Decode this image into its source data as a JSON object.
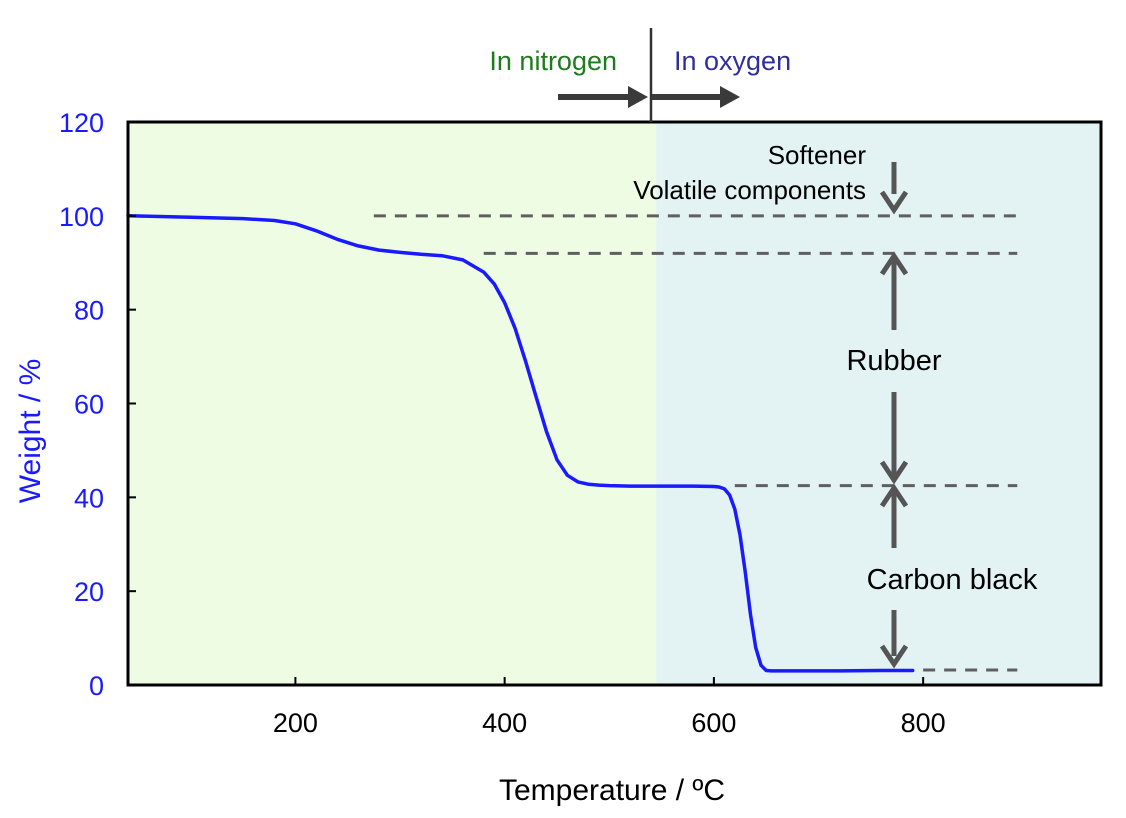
{
  "chart_data": {
    "type": "line",
    "title": "",
    "xlabel": "Temperature / ºC",
    "ylabel": "Weight / %",
    "xlim": [
      40,
      970
    ],
    "ylim": [
      0,
      120
    ],
    "x_ticks": [
      200,
      400,
      600,
      800
    ],
    "x_tick_labels": [
      "200",
      "400",
      "600",
      "800"
    ],
    "y_ticks": [
      0,
      20,
      40,
      60,
      80,
      100,
      120
    ],
    "y_tick_labels": [
      "0",
      "20",
      "40",
      "60",
      "80",
      "100",
      "120"
    ],
    "grid": false,
    "regions": [
      {
        "label": "In nitrogen",
        "x_start": 40,
        "x_end": 545,
        "color": "#eefce4",
        "label_color": "#1e7b1e"
      },
      {
        "label": "In oxygen",
        "x_start": 545,
        "x_end": 970,
        "color": "#e3f3f4",
        "label_color": "#2f2f99"
      }
    ],
    "series": [
      {
        "color": "#1a1aff",
        "x": [
          40,
          100,
          150,
          180,
          200,
          220,
          240,
          260,
          280,
          300,
          320,
          340,
          360,
          380,
          390,
          400,
          410,
          420,
          430,
          440,
          450,
          460,
          470,
          480,
          490,
          500,
          520,
          540,
          560,
          580,
          600,
          605,
          610,
          615,
          620,
          625,
          630,
          635,
          640,
          645,
          650,
          655,
          680,
          720,
          760,
          790
        ],
        "y": [
          100,
          99.7,
          99.4,
          99,
          98.3,
          96.8,
          95,
          93.6,
          92.7,
          92.2,
          91.8,
          91.5,
          90.6,
          88,
          85.5,
          81.5,
          76,
          69,
          61.5,
          54,
          48,
          44.7,
          43.3,
          42.8,
          42.6,
          42.5,
          42.4,
          42.4,
          42.4,
          42.4,
          42.3,
          42.2,
          41.8,
          40.5,
          37.5,
          32,
          24,
          15,
          8,
          4.2,
          3.1,
          3.0,
          3.0,
          3.0,
          3.1,
          3.1
        ]
      }
    ],
    "reference_lines": [
      {
        "y": 100,
        "x_start": 275,
        "x_end": 890
      },
      {
        "y": 92,
        "x_start": 380,
        "x_end": 890
      },
      {
        "y": 42.5,
        "x_start": 620,
        "x_end": 890
      },
      {
        "y": 3.2,
        "x_start": 800,
        "x_end": 890
      }
    ],
    "annotations": [
      {
        "text": "Softener",
        "component": "softener"
      },
      {
        "text": "Volatile components",
        "component": "volatile"
      },
      {
        "text": "Rubber",
        "component": "rubber"
      },
      {
        "text": "Carbon black",
        "component": "carbon_black"
      }
    ]
  }
}
